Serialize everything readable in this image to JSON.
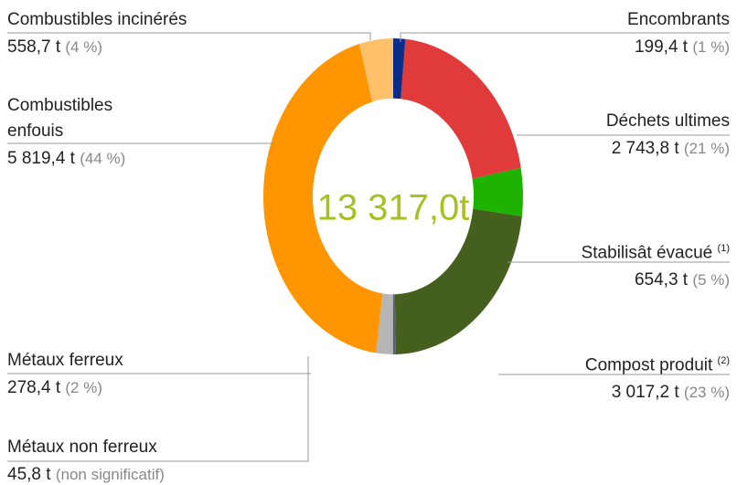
{
  "chart_data": {
    "type": "donut",
    "total_label": "13 317,0t",
    "categories": [
      "Combustibles incinérés",
      "Encombrants",
      "Déchets ultimes",
      "Stabilisât évacué",
      "Compost produit",
      "Métaux non ferreux",
      "Métaux ferreux",
      "Combustibles enfouis"
    ],
    "values": [
      558.7,
      199.4,
      2743.8,
      654.3,
      3017.2,
      45.8,
      278.4,
      5819.4
    ],
    "value_labels": [
      "558,7 t",
      "199,4 t",
      "2 743,8 t",
      "654,3 t",
      "3 017,2 t",
      "45,8 t",
      "278,4 t",
      "5 819,4 t"
    ],
    "share_labels": [
      "(4 %)",
      "(1 %)",
      "(21 %)",
      "(5 %)",
      "(23 %)",
      "(non significatif)",
      "(2 %)",
      "(44 %)"
    ],
    "notes": [
      null,
      null,
      null,
      "(1)",
      "(2)",
      null,
      null,
      null
    ],
    "colors": [
      "#ffc06a",
      "#0a2d8a",
      "#e03a3a",
      "#1db300",
      "#45601e",
      "#5a6070",
      "#b5b5b5",
      "#ff9500"
    ]
  }
}
